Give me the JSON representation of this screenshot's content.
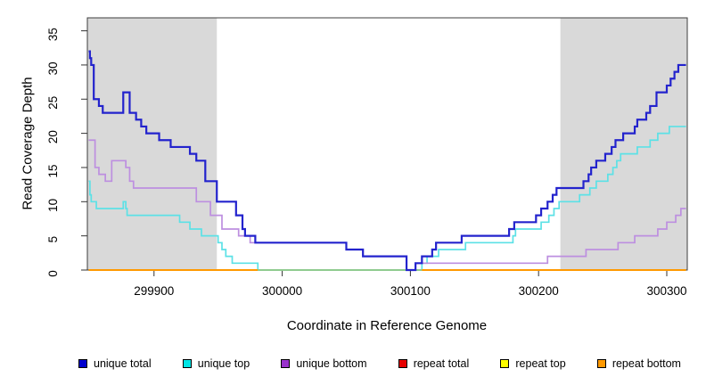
{
  "figure": {
    "y_axis_title": "Read Coverage Depth",
    "x_axis_title": "Coordinate in Reference Genome",
    "y_ticks": [
      0,
      5,
      10,
      15,
      20,
      25,
      30,
      35
    ],
    "x_ticks": [
      {
        "label": "299900",
        "value": 299900
      },
      {
        "label": "300000",
        "value": 300000
      },
      {
        "label": "300100",
        "value": 300100
      },
      {
        "label": "300200",
        "value": 300200
      },
      {
        "label": "300300",
        "value": 300300
      }
    ]
  },
  "colors": {
    "shade": "#d9d9d9",
    "box": "#3d3d3d",
    "blue_line": "#2323cd",
    "cyan_line": "#5ce1e6",
    "purple_line": "#bd8fe0",
    "orange_line": "#ff9900",
    "green_overlap": "#8fcb8f"
  },
  "legend": {
    "items": [
      {
        "label": "unique total",
        "color": "#0000cd"
      },
      {
        "label": "unique top",
        "color": "#00e5e5"
      },
      {
        "label": "unique bottom",
        "color": "#9932cc"
      },
      {
        "label": "repeat total",
        "color": "#e60000"
      },
      {
        "label": "repeat top",
        "color": "#ffff00"
      },
      {
        "label": "repeat bottom",
        "color": "#ff9900"
      }
    ]
  },
  "chart_data": {
    "type": "line",
    "style": "step-after",
    "title": "",
    "xlabel": "Coordinate in Reference Genome",
    "ylabel": "Read Coverage Depth",
    "xlim": [
      299848,
      300316
    ],
    "ylim": [
      0,
      36.9
    ],
    "grid": false,
    "legend_position": "bottom",
    "shaded_repeat_regions": [
      [
        299848,
        299949
      ],
      [
        300217,
        300316
      ]
    ],
    "series": [
      {
        "name": "unique total",
        "color": "#2323cd",
        "visible": true,
        "points": [
          [
            299849,
            32
          ],
          [
            299850,
            31
          ],
          [
            299851,
            30
          ],
          [
            299853,
            25
          ],
          [
            299857,
            24
          ],
          [
            299860,
            23
          ],
          [
            299876,
            26
          ],
          [
            299881,
            23
          ],
          [
            299886,
            22
          ],
          [
            299890,
            21
          ],
          [
            299894,
            20
          ],
          [
            299904,
            19
          ],
          [
            299913,
            18
          ],
          [
            299928,
            17
          ],
          [
            299933,
            16
          ],
          [
            299940,
            13
          ],
          [
            299949,
            10
          ],
          [
            299964,
            8
          ],
          [
            299969,
            6
          ],
          [
            299971,
            5
          ],
          [
            299979,
            4
          ],
          [
            300050,
            3
          ],
          [
            300063,
            2
          ],
          [
            300097,
            0
          ],
          [
            300104,
            1
          ],
          [
            300109,
            2
          ],
          [
            300117,
            3
          ],
          [
            300120,
            4
          ],
          [
            300140,
            5
          ],
          [
            300177,
            6
          ],
          [
            300181,
            7
          ],
          [
            300198,
            8
          ],
          [
            300202,
            9
          ],
          [
            300207,
            10
          ],
          [
            300211,
            11
          ],
          [
            300214,
            12
          ],
          [
            300235,
            13
          ],
          [
            300239,
            14
          ],
          [
            300241,
            15
          ],
          [
            300245,
            16
          ],
          [
            300252,
            17
          ],
          [
            300257,
            18
          ],
          [
            300260,
            19
          ],
          [
            300266,
            20
          ],
          [
            300275,
            21
          ],
          [
            300277,
            22
          ],
          [
            300284,
            23
          ],
          [
            300287,
            24
          ],
          [
            300292,
            26
          ],
          [
            300300,
            27
          ],
          [
            300303,
            28
          ],
          [
            300306,
            29
          ],
          [
            300309,
            30
          ],
          [
            300315,
            30
          ]
        ]
      },
      {
        "name": "unique top",
        "color": "#5ce1e6",
        "visible": true,
        "points": [
          [
            299849,
            13
          ],
          [
            299850,
            11
          ],
          [
            299851,
            10
          ],
          [
            299855,
            9
          ],
          [
            299876,
            10
          ],
          [
            299878,
            9
          ],
          [
            299879,
            8
          ],
          [
            299920,
            7
          ],
          [
            299928,
            6
          ],
          [
            299937,
            5
          ],
          [
            299950,
            4
          ],
          [
            299953,
            3
          ],
          [
            299956,
            2
          ],
          [
            299961,
            1
          ],
          [
            299981,
            0
          ],
          [
            300109,
            1
          ],
          [
            300113,
            2
          ],
          [
            300122,
            3
          ],
          [
            300143,
            4
          ],
          [
            300180,
            5
          ],
          [
            300182,
            6
          ],
          [
            300202,
            7
          ],
          [
            300208,
            8
          ],
          [
            300212,
            9
          ],
          [
            300216,
            10
          ],
          [
            300232,
            11
          ],
          [
            300240,
            12
          ],
          [
            300245,
            13
          ],
          [
            300254,
            14
          ],
          [
            300258,
            15
          ],
          [
            300261,
            16
          ],
          [
            300264,
            17
          ],
          [
            300277,
            18
          ],
          [
            300287,
            19
          ],
          [
            300293,
            20
          ],
          [
            300302,
            21
          ],
          [
            300315,
            21
          ]
        ]
      },
      {
        "name": "unique bottom",
        "color": "#bd8fe0",
        "visible": true,
        "points": [
          [
            299849,
            19
          ],
          [
            299854,
            15
          ],
          [
            299857,
            14
          ],
          [
            299862,
            13
          ],
          [
            299867,
            16
          ],
          [
            299878,
            15
          ],
          [
            299881,
            13
          ],
          [
            299884,
            12
          ],
          [
            299933,
            10
          ],
          [
            299944,
            8
          ],
          [
            299953,
            6
          ],
          [
            299966,
            5
          ],
          [
            299975,
            4
          ],
          [
            300050,
            3
          ],
          [
            300063,
            2
          ],
          [
            300097,
            0
          ],
          [
            300104,
            1
          ],
          [
            300207,
            2
          ],
          [
            300237,
            3
          ],
          [
            300262,
            4
          ],
          [
            300275,
            5
          ],
          [
            300293,
            6
          ],
          [
            300300,
            7
          ],
          [
            300307,
            8
          ],
          [
            300311,
            9
          ],
          [
            300315,
            9
          ]
        ]
      },
      {
        "name": "repeat total",
        "color": "#e60000",
        "visible": false,
        "points": [
          [
            299849,
            0
          ],
          [
            300315,
            0
          ]
        ]
      },
      {
        "name": "repeat top",
        "color": "#ffff00",
        "visible": false,
        "points": [
          [
            299849,
            0
          ],
          [
            300315,
            0
          ]
        ]
      },
      {
        "name": "repeat bottom",
        "color": "#ff9900",
        "visible": false,
        "points": [
          [
            299849,
            0
          ],
          [
            300315,
            0
          ]
        ]
      }
    ],
    "zero_baseline_segments": [
      {
        "range": [
          299849,
          299981
        ],
        "color": "#ff9900"
      },
      {
        "range": [
          299981,
          300109
        ],
        "color": "#8fcb8f"
      },
      {
        "range": [
          300109,
          300315
        ],
        "color": "#ff9900"
      }
    ]
  }
}
